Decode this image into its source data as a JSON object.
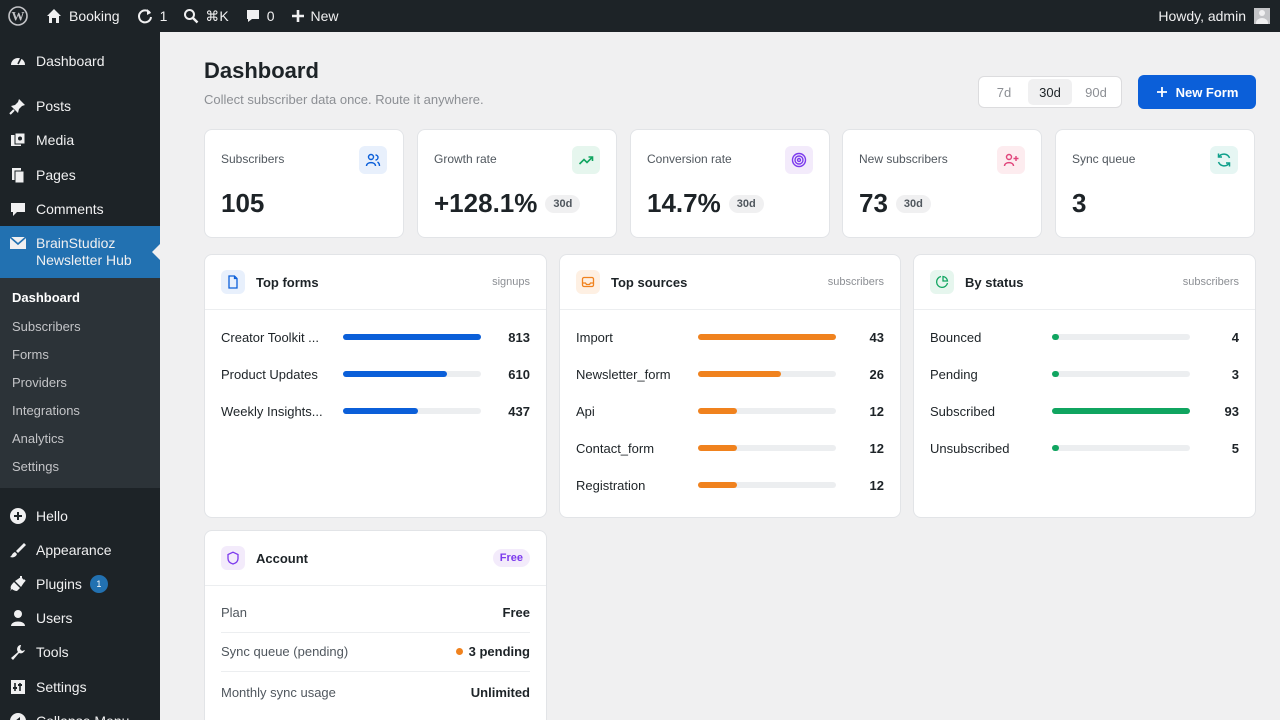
{
  "adminbar": {
    "site_name": "Booking",
    "updates_count": "1",
    "search_shortcut": "⌘K",
    "comments_count": "0",
    "new_label": "New",
    "howdy": "Howdy, admin"
  },
  "sidebar": {
    "items": [
      {
        "label": "Dashboard",
        "icon": "dashboard-icon"
      },
      {
        "label": "Posts",
        "icon": "pin-icon"
      },
      {
        "label": "Media",
        "icon": "media-icon"
      },
      {
        "label": "Pages",
        "icon": "pages-icon"
      },
      {
        "label": "Comments",
        "icon": "comment-icon"
      },
      {
        "label": "BrainStudioz",
        "label2": "Newsletter Hub",
        "icon": "envelope-icon"
      },
      {
        "label": "Hello",
        "icon": "plus-circle-icon"
      },
      {
        "label": "Appearance",
        "icon": "brush-icon"
      },
      {
        "label": "Plugins",
        "icon": "plug-icon",
        "badge": "1"
      },
      {
        "label": "Users",
        "icon": "user-icon"
      },
      {
        "label": "Tools",
        "icon": "wrench-icon"
      },
      {
        "label": "Settings",
        "icon": "settings-icon"
      },
      {
        "label": "Collapse Menu",
        "icon": "collapse-icon"
      }
    ],
    "submenu": [
      "Dashboard",
      "Subscribers",
      "Forms",
      "Providers",
      "Integrations",
      "Analytics",
      "Settings"
    ]
  },
  "header": {
    "title": "Dashboard",
    "subtitle": "Collect subscriber data once. Route it anywhere.",
    "ranges": [
      "7d",
      "30d",
      "90d"
    ],
    "active_range": "30d",
    "new_form": "New Form"
  },
  "stats": [
    {
      "label": "Subscribers",
      "value": "105",
      "pill": "",
      "icon": "users-icon"
    },
    {
      "label": "Growth rate",
      "value": "+128.1%",
      "pill": "30d",
      "icon": "trending-up-icon"
    },
    {
      "label": "Conversion rate",
      "value": "14.7%",
      "pill": "30d",
      "icon": "target-icon"
    },
    {
      "label": "New subscribers",
      "value": "73",
      "pill": "30d",
      "icon": "user-plus-icon"
    },
    {
      "label": "Sync queue",
      "value": "3",
      "pill": "",
      "icon": "refresh-icon"
    }
  ],
  "top_forms": {
    "title": "Top forms",
    "meta": "signups",
    "rows": [
      {
        "label": "Creator Toolkit ...",
        "value": "813",
        "fraction": 1.0
      },
      {
        "label": "Product Updates",
        "value": "610",
        "fraction": 0.75
      },
      {
        "label": "Weekly Insights...",
        "value": "437",
        "fraction": 0.54
      }
    ]
  },
  "top_sources": {
    "title": "Top sources",
    "meta": "subscribers",
    "rows": [
      {
        "label": "Import",
        "value": "43",
        "fraction": 1.0
      },
      {
        "label": "Newsletter_form",
        "value": "26",
        "fraction": 0.6
      },
      {
        "label": "Api",
        "value": "12",
        "fraction": 0.28
      },
      {
        "label": "Contact_form",
        "value": "12",
        "fraction": 0.28
      },
      {
        "label": "Registration",
        "value": "12",
        "fraction": 0.28
      }
    ]
  },
  "by_status": {
    "title": "By status",
    "meta": "subscribers",
    "rows": [
      {
        "label": "Bounced",
        "value": "4",
        "fraction": 0.04
      },
      {
        "label": "Pending",
        "value": "3",
        "fraction": 0.03
      },
      {
        "label": "Subscribed",
        "value": "93",
        "fraction": 1.0
      },
      {
        "label": "Unsubscribed",
        "value": "5",
        "fraction": 0.05
      }
    ]
  },
  "account": {
    "title": "Account",
    "badge": "Free",
    "rows": [
      {
        "label": "Plan",
        "value": "Free"
      },
      {
        "label": "Sync queue (pending)",
        "value": "3 pending"
      },
      {
        "label": "Monthly sync usage",
        "value": "Unlimited"
      }
    ]
  },
  "colors": {
    "accent": "#0b5fd9",
    "forms_bar": "#0b5fd9",
    "sources_bar": "#f0821e",
    "status_bar": "#10a560",
    "menu_current": "#2271b1"
  }
}
